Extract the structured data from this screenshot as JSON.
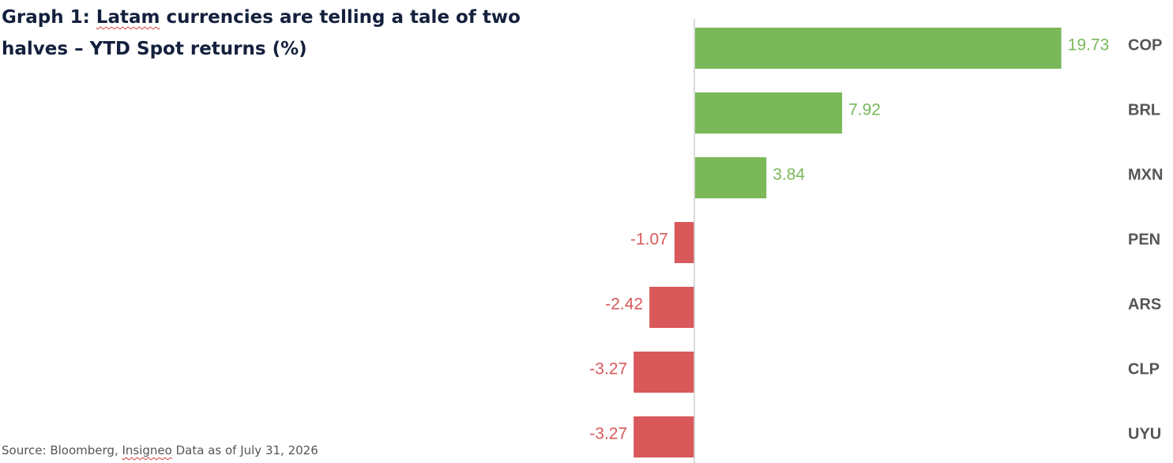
{
  "title": {
    "prefix": "Graph 1: ",
    "squiggle_word": "Latam",
    "rest": " currencies are telling a tale of two halves – YTD Spot returns (%)"
  },
  "source": {
    "prefix": "Source: Bloomberg, ",
    "squiggle_word": "Insigneo",
    "rest": " Data as of July 31, 2026"
  },
  "colors": {
    "positive": "#7ab85a",
    "negative": "#d9585a",
    "axis": "#cfcfcf",
    "category_label": "#555555",
    "title": "#14213d"
  },
  "chart_data": {
    "type": "bar",
    "orientation": "horizontal",
    "categories": [
      "COP",
      "BRL",
      "MXN",
      "PEN",
      "ARS",
      "CLP",
      "UYU"
    ],
    "values": [
      19.73,
      7.92,
      3.84,
      -1.07,
      -2.42,
      -3.27,
      -3.27
    ],
    "data_labels": [
      "19.73",
      "7.92",
      "3.84",
      "-1.07",
      "-2.42",
      "-3.27",
      "-3.27"
    ],
    "xlim": [
      -4,
      21
    ],
    "zero_line": true,
    "grid": false,
    "legend": "none",
    "category_labels_position": "right"
  }
}
